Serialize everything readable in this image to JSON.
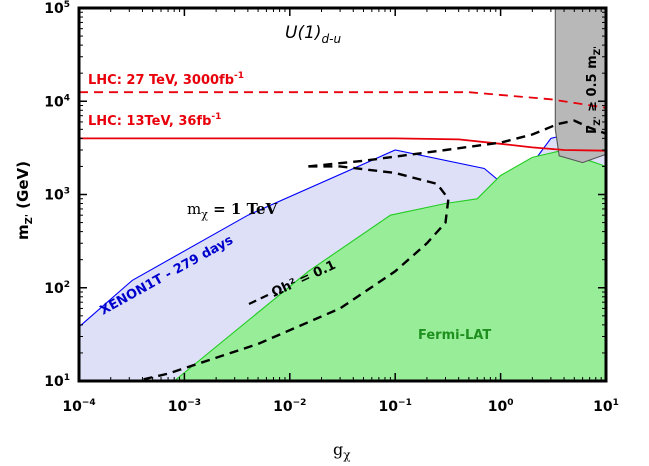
{
  "chart_data": {
    "type": "line",
    "title": "U(1)",
    "title_subscript": "d-u",
    "xlabel": "g",
    "xlabel_subscript": "χ",
    "ylabel_main": "m",
    "ylabel_subscript": "Z'",
    "ylabel_unit": " (GeV)",
    "xscale": "log",
    "yscale": "log",
    "xlim": [
      0.0001,
      10
    ],
    "ylim": [
      10,
      100000
    ],
    "x_ticks": [
      {
        "value": 0.0001,
        "base": "10",
        "exp": "−4"
      },
      {
        "value": 0.001,
        "base": "10",
        "exp": "−3"
      },
      {
        "value": 0.01,
        "base": "10",
        "exp": "−2"
      },
      {
        "value": 0.1,
        "base": "10",
        "exp": "−1"
      },
      {
        "value": 1,
        "base": "10",
        "exp": "0"
      },
      {
        "value": 10,
        "base": "10",
        "exp": "1"
      }
    ],
    "y_ticks": [
      {
        "value": 10,
        "base": "10",
        "exp": "1"
      },
      {
        "value": 100,
        "base": "10",
        "exp": "2"
      },
      {
        "value": 1000,
        "base": "10",
        "exp": "3"
      },
      {
        "value": 10000,
        "base": "10",
        "exp": "4"
      },
      {
        "value": 100000,
        "base": "10",
        "exp": "5"
      }
    ],
    "mchi_label": {
      "symbol": "m",
      "subscript": "χ",
      "rest": " = 1 TeV"
    },
    "series": [
      {
        "name": "LHC: 27 TeV, 3000fb",
        "name_sup": "-1",
        "style": "dashed",
        "color": "#e8000b",
        "x": [
          0.0001,
          0.5,
          3,
          10
        ],
        "y": [
          12500,
          12500,
          10500,
          8500
        ]
      },
      {
        "name": "LHC: 13TeV, 36fb",
        "name_sup": "-1",
        "style": "solid",
        "color": "#e8000b",
        "x": [
          0.0001,
          0.1,
          0.4,
          1,
          2,
          4,
          10
        ],
        "y": [
          4000,
          4000,
          3900,
          3500,
          3200,
          3000,
          2950
        ]
      },
      {
        "name": "XENON1T - 279 days",
        "style": "region",
        "color": "#0000ff",
        "fill": "#dde0f7",
        "x": [
          0.0001,
          0.0001,
          0.00032,
          0.004,
          0.1,
          0.7,
          1.05,
          0.9,
          0.3,
          3,
          10,
          10,
          0.00032
        ],
        "y": [
          10,
          38,
          120,
          600,
          3000,
          1900,
          1300,
          600,
          120,
          4000,
          5500,
          10,
          10
        ]
      },
      {
        "name": "Fermi-LAT",
        "style": "region",
        "color": "#22cc22",
        "fill": "#98ee98",
        "x": [
          0.0008,
          0.015,
          0.09,
          0.3,
          0.6,
          1,
          2,
          4,
          7,
          10,
          10
        ],
        "y": [
          10,
          150,
          600,
          800,
          900,
          1600,
          2500,
          3000,
          2300,
          2000,
          10
        ]
      },
      {
        "name": "Ωh² = 0.1",
        "style": "dashed",
        "color": "#000000",
        "x": [
          0.015,
          0.03,
          0.1,
          0.25,
          0.32,
          0.3,
          0.2,
          0.1,
          0.03,
          0.005,
          0.0007,
          0.00035
        ],
        "y": [
          2000,
          2000,
          1700,
          1300,
          900,
          500,
          300,
          150,
          60,
          25,
          12,
          10
        ]
      },
      {
        "name": "Ωh² = 0.1 (upper)",
        "style": "dashed",
        "color": "#000000",
        "x": [
          0.015,
          0.05,
          0.3,
          1,
          2,
          3.5,
          5,
          7,
          10
        ],
        "y": [
          2000,
          2300,
          3000,
          3600,
          4400,
          5700,
          6200,
          5200,
          4500
        ]
      },
      {
        "name": "Γ_Z' ≥ 0.5 m_Z'",
        "style": "region",
        "color": "#555555",
        "fill": "#b8b8b8",
        "x": [
          3.3,
          10,
          10,
          6,
          3.6,
          3.3
        ],
        "y": [
          100000,
          100000,
          2700,
          2200,
          2600,
          5000
        ]
      }
    ],
    "annotations": {
      "lhc27_label": "LHC: 27 TeV, 3000fb",
      "lhc27_sup": "-1",
      "lhc13_label": "LHC: 13TeV, 36fb",
      "lhc13_sup": "-1",
      "xenon_label": "XENON1T - 279 days",
      "fermi_label": "Fermi-LAT",
      "relic_label": "Ωh² = 0.1",
      "width_gamma": "Γ",
      "width_sub": "Z'",
      "width_rest": " ≥ 0.5 m",
      "width_rest_sub": "Z'"
    },
    "grid": false
  }
}
